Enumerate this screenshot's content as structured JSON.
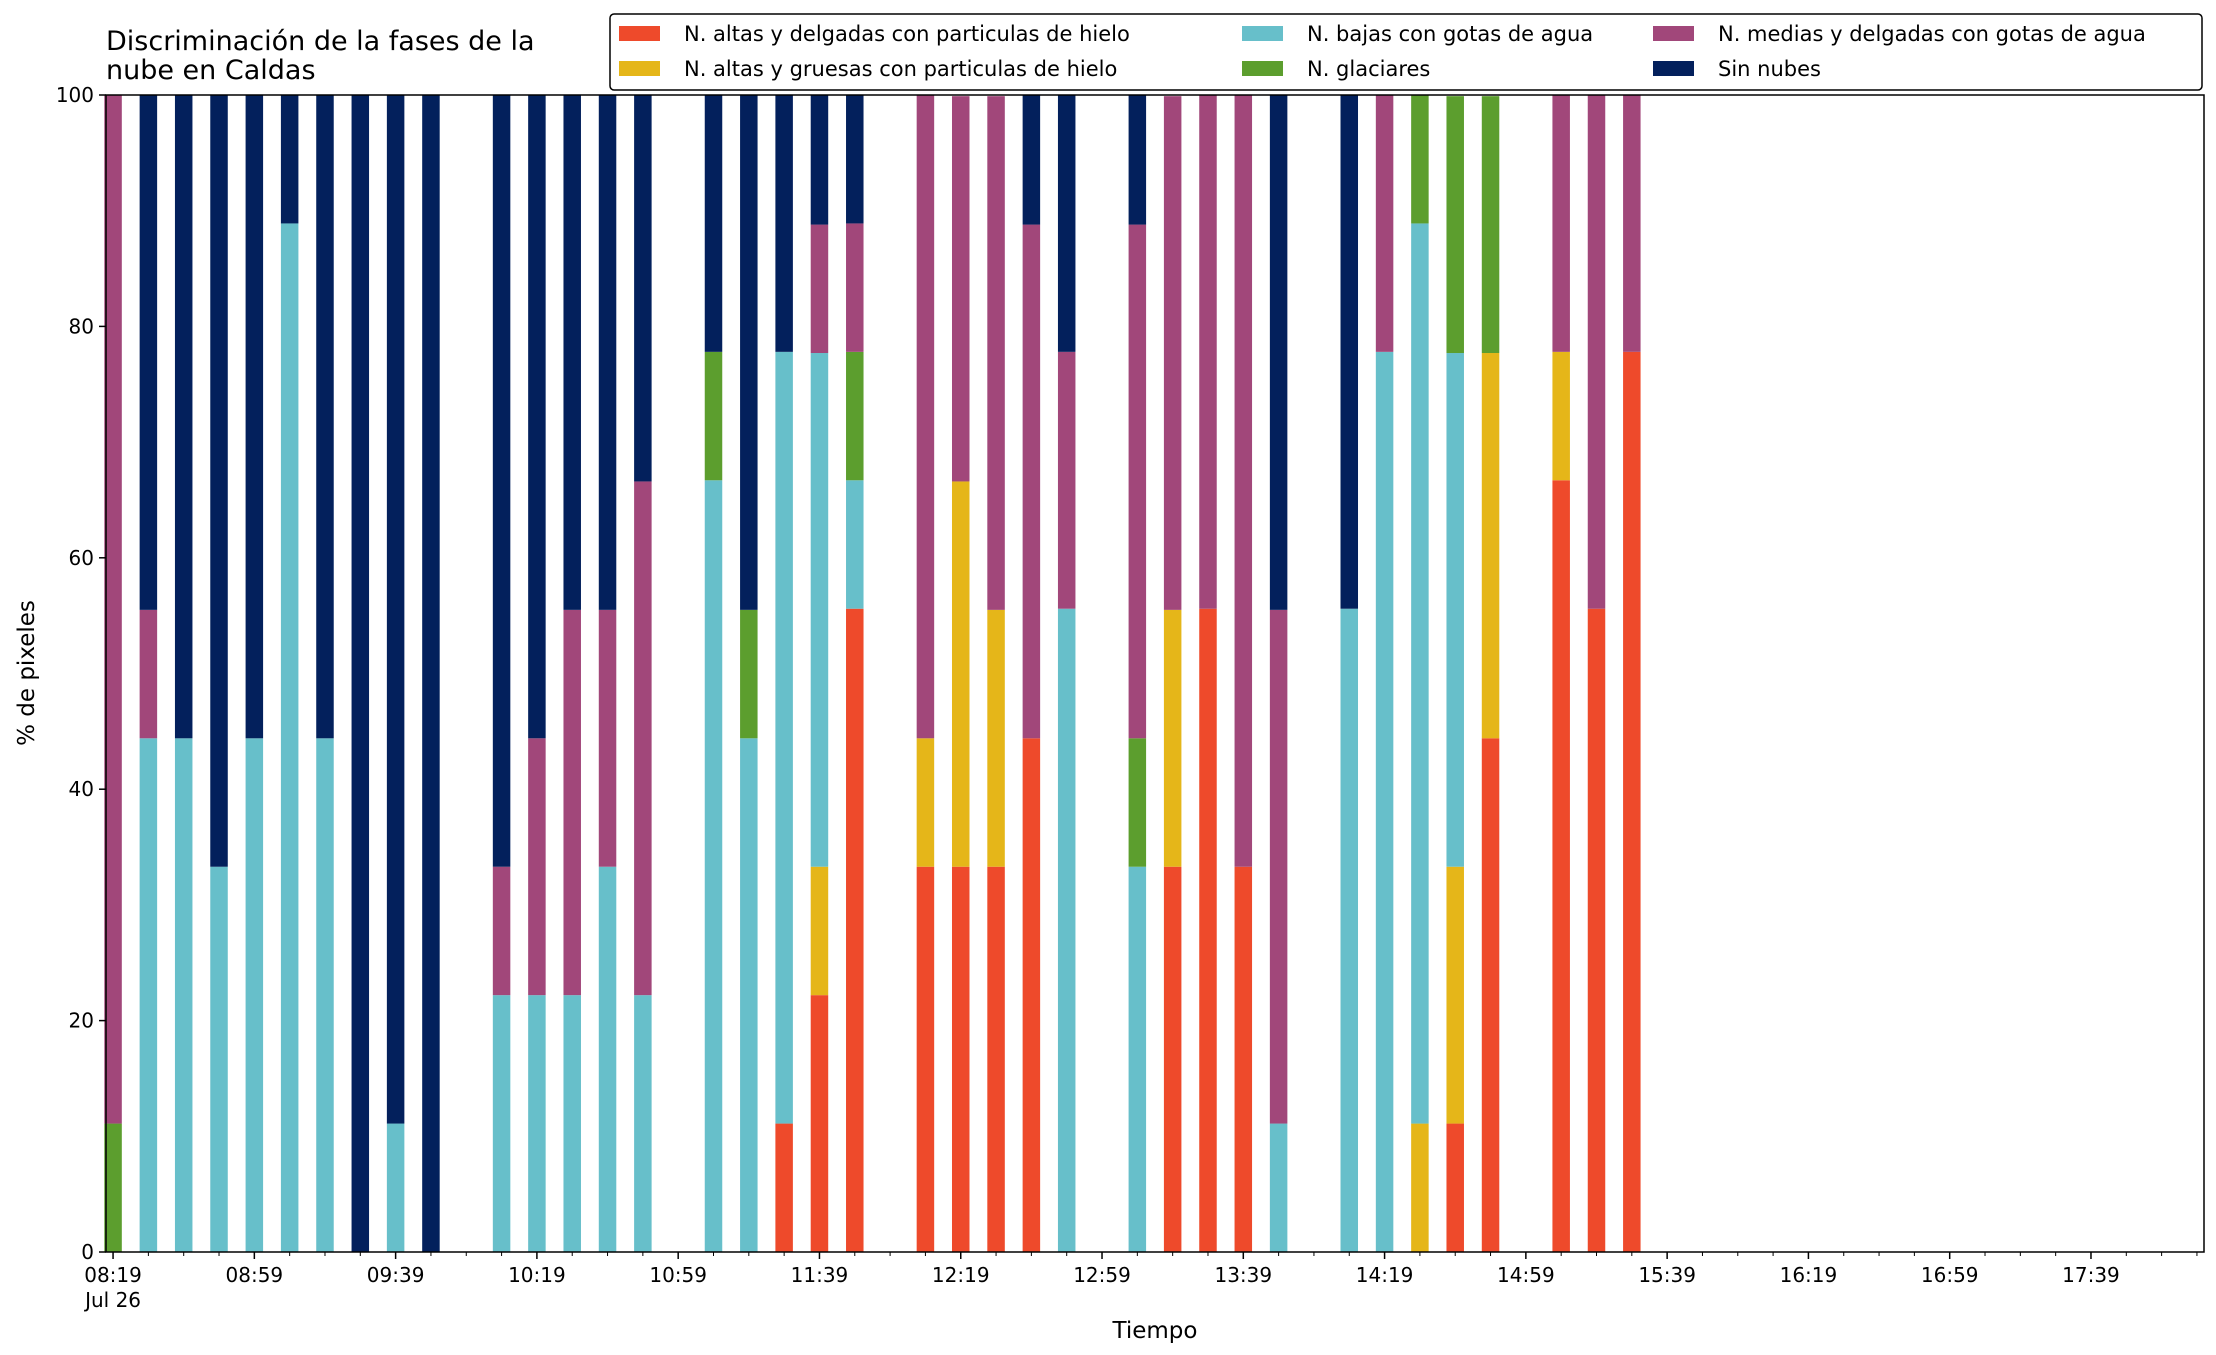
{
  "chart_data": {
    "type": "bar",
    "stacked": true,
    "title": "Discriminación de la fases de la\nnube en Caldas",
    "xlabel": "Tiempo",
    "ylabel": "% de pixeles",
    "ylim": [
      0,
      100
    ],
    "yticks": [
      0,
      20,
      40,
      60,
      80,
      100
    ],
    "xlim": [
      "08:17",
      "18:11"
    ],
    "xtick_labels": [
      "08:19",
      "08:59",
      "09:39",
      "10:19",
      "10:59",
      "11:39",
      "12:19",
      "12:59",
      "13:39",
      "14:19",
      "14:59",
      "15:39",
      "16:19",
      "16:59",
      "17:39"
    ],
    "xtick_sublabel": "Jul 26",
    "grid": false,
    "legend_position": "top",
    "x": [
      "08:19",
      "08:29",
      "08:39",
      "08:49",
      "08:59",
      "09:09",
      "09:19",
      "09:29",
      "09:39",
      "09:49",
      "10:09",
      "10:19",
      "10:29",
      "10:39",
      "10:49",
      "11:09",
      "11:19",
      "11:29",
      "11:39",
      "11:49",
      "12:09",
      "12:19",
      "12:29",
      "12:39",
      "12:49",
      "13:09",
      "13:19",
      "13:29",
      "13:39",
      "13:49",
      "14:09",
      "14:19",
      "14:29",
      "14:39",
      "14:49",
      "15:09",
      "15:19",
      "15:29"
    ],
    "series": [
      {
        "name": "N. altas y delgadas con particulas de hielo",
        "color": "#ee4a2b",
        "values": [
          0,
          0,
          0,
          0,
          0,
          0,
          0,
          0,
          0,
          0,
          0,
          0,
          0,
          0,
          0,
          0,
          0,
          11.1,
          22.2,
          55.6,
          33.3,
          33.3,
          33.3,
          44.4,
          0,
          0,
          33.3,
          55.6,
          33.3,
          0,
          0,
          0,
          0,
          11.1,
          44.4,
          66.7,
          55.6,
          77.8
        ]
      },
      {
        "name": "N. altas y gruesas con particulas de hielo",
        "color": "#e5b619",
        "values": [
          0,
          0,
          0,
          0,
          0,
          0,
          0,
          0,
          0,
          0,
          0,
          0,
          0,
          0,
          0,
          0,
          0,
          0,
          11.1,
          0,
          11.1,
          33.3,
          22.2,
          0,
          0,
          0,
          22.2,
          0,
          0,
          0,
          0,
          0,
          11.1,
          22.2,
          33.3,
          11.1,
          0,
          0
        ]
      },
      {
        "name": "N. bajas con gotas de agua",
        "color": "#67bfca",
        "values": [
          0,
          44.4,
          44.4,
          33.3,
          44.4,
          88.9,
          44.4,
          0,
          11.1,
          0,
          22.2,
          22.2,
          22.2,
          33.3,
          22.2,
          66.7,
          44.4,
          66.7,
          44.4,
          11.1,
          0,
          0,
          0,
          0,
          55.6,
          33.3,
          0,
          0,
          0,
          11.1,
          55.6,
          77.8,
          77.8,
          44.4,
          0,
          0,
          0,
          0
        ]
      },
      {
        "name": "N. glaciares",
        "color": "#5c9e2e",
        "values": [
          11.1,
          0,
          0,
          0,
          0,
          0,
          0,
          0,
          0,
          0,
          0,
          0,
          0,
          0,
          0,
          11.1,
          11.1,
          0,
          0,
          11.1,
          0,
          0,
          0,
          0,
          0,
          11.1,
          0,
          0,
          0,
          0,
          0,
          0,
          11.1,
          22.2,
          22.2,
          0,
          0,
          0
        ]
      },
      {
        "name": "N. medias y delgadas con gotas de agua",
        "color": "#a1477a",
        "values": [
          88.9,
          11.1,
          0,
          0,
          0,
          0,
          0,
          0,
          0,
          0,
          11.1,
          22.2,
          33.3,
          22.2,
          44.4,
          0,
          0,
          0,
          11.1,
          11.1,
          55.6,
          33.3,
          44.4,
          44.4,
          22.2,
          44.4,
          44.4,
          44.4,
          66.7,
          44.4,
          0,
          22.2,
          0,
          0,
          0,
          22.2,
          44.4,
          22.2
        ]
      },
      {
        "name": "Sin nubes",
        "color": "#03205c",
        "values": [
          0,
          44.5,
          55.6,
          66.7,
          55.6,
          11.1,
          55.6,
          100,
          88.9,
          100,
          66.7,
          55.6,
          44.5,
          44.5,
          33.4,
          22.2,
          44.5,
          22.2,
          11.2,
          11.1,
          0,
          0,
          0,
          11.2,
          22.2,
          11.2,
          0,
          0,
          0,
          44.5,
          44.4,
          0,
          0,
          0,
          0,
          0,
          0,
          0
        ]
      }
    ]
  }
}
